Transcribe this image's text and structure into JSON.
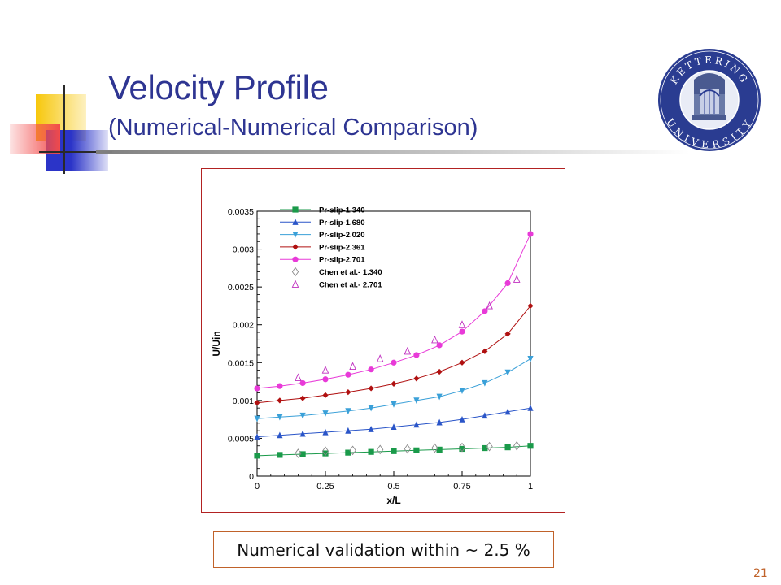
{
  "slide": {
    "title": "Velocity Profile",
    "subtitle": "(Numerical-Numerical Comparison)",
    "caption": "Numerical validation within ~ 2.5 %",
    "page_number": "21",
    "logo": {
      "top_text": "KETTERING",
      "bottom_text": "UNIVERSITY",
      "ring_color": "#2a3c91",
      "center_color": "#6a7aa8"
    },
    "colors": {
      "title": "#2e3592",
      "accent_yellow": "#f7c70a",
      "accent_blue": "#2b34c8",
      "accent_red": "#f24a4a",
      "frame": "#b22222"
    }
  },
  "chart_data": {
    "type": "line",
    "xlabel": "x/L",
    "ylabel": "U/Uin",
    "xlim": [
      0,
      1
    ],
    "ylim": [
      0,
      0.0035
    ],
    "xticks": [
      "0",
      "0.25",
      "0.5",
      "0.75",
      "1"
    ],
    "yticks": [
      "0",
      "0.0005",
      "0.001",
      "0.0015",
      "0.002",
      "0.0025",
      "0.003",
      "0.0035"
    ],
    "legend_position": "top-left",
    "grid": false,
    "series": [
      {
        "name": "Pr-slip-1.340",
        "color": "#1a9a4a",
        "marker": "square",
        "line": true,
        "x": [
          0,
          0.083,
          0.167,
          0.25,
          0.333,
          0.417,
          0.5,
          0.583,
          0.667,
          0.75,
          0.833,
          0.917,
          1.0
        ],
        "y": [
          0.00027,
          0.00028,
          0.00029,
          0.0003,
          0.00031,
          0.00032,
          0.00033,
          0.00034,
          0.00035,
          0.00036,
          0.00037,
          0.00038,
          0.0004
        ]
      },
      {
        "name": "Pr-slip-1.680",
        "color": "#2a55c8",
        "marker": "triangle-up",
        "line": true,
        "x": [
          0,
          0.083,
          0.167,
          0.25,
          0.333,
          0.417,
          0.5,
          0.583,
          0.667,
          0.75,
          0.833,
          0.917,
          1.0
        ],
        "y": [
          0.00052,
          0.00054,
          0.00056,
          0.00058,
          0.0006,
          0.00062,
          0.00065,
          0.00068,
          0.00071,
          0.00075,
          0.0008,
          0.00085,
          0.0009
        ]
      },
      {
        "name": "Pr-slip-2.020",
        "color": "#3aa0d8",
        "marker": "triangle-down",
        "line": true,
        "x": [
          0,
          0.083,
          0.167,
          0.25,
          0.333,
          0.417,
          0.5,
          0.583,
          0.667,
          0.75,
          0.833,
          0.917,
          1.0
        ],
        "y": [
          0.00076,
          0.00078,
          0.0008,
          0.00083,
          0.00086,
          0.0009,
          0.00095,
          0.001,
          0.00105,
          0.00113,
          0.00123,
          0.00137,
          0.00155
        ]
      },
      {
        "name": "Pr-slip-2.361",
        "color": "#b01010",
        "marker": "diamond",
        "line": true,
        "x": [
          0,
          0.083,
          0.167,
          0.25,
          0.333,
          0.417,
          0.5,
          0.583,
          0.667,
          0.75,
          0.833,
          0.917,
          1.0
        ],
        "y": [
          0.00097,
          0.001,
          0.00103,
          0.00107,
          0.00111,
          0.00116,
          0.00122,
          0.00129,
          0.00138,
          0.0015,
          0.00165,
          0.00188,
          0.00225
        ]
      },
      {
        "name": "Pr-slip-2.701",
        "color": "#e83ad8",
        "marker": "circle",
        "line": true,
        "x": [
          0,
          0.083,
          0.167,
          0.25,
          0.333,
          0.417,
          0.5,
          0.583,
          0.667,
          0.75,
          0.833,
          0.917,
          1.0
        ],
        "y": [
          0.00116,
          0.00119,
          0.00123,
          0.00128,
          0.00134,
          0.00141,
          0.0015,
          0.0016,
          0.00173,
          0.00191,
          0.00218,
          0.00255,
          0.0032
        ]
      },
      {
        "name": "Chen et al.- 1.340",
        "color": "#8a8a8a",
        "marker": "diamond-open",
        "line": false,
        "x": [
          0.15,
          0.25,
          0.35,
          0.45,
          0.55,
          0.65,
          0.75,
          0.85,
          0.95
        ],
        "y": [
          0.0003,
          0.00033,
          0.00034,
          0.00035,
          0.00036,
          0.00037,
          0.00038,
          0.00039,
          0.0004
        ]
      },
      {
        "name": "Chen et al.- 2.701",
        "color": "#c030c0",
        "marker": "triangle-open",
        "line": false,
        "x": [
          0.15,
          0.25,
          0.35,
          0.45,
          0.55,
          0.65,
          0.75,
          0.85,
          0.95
        ],
        "y": [
          0.0013,
          0.0014,
          0.00145,
          0.00155,
          0.00165,
          0.0018,
          0.002,
          0.00225,
          0.0026
        ]
      }
    ]
  }
}
